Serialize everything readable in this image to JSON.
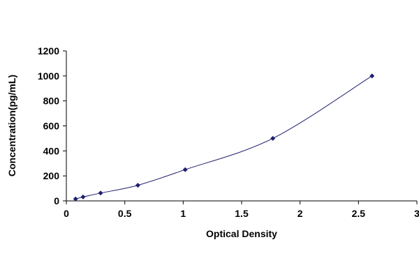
{
  "chart_data": {
    "type": "scatter",
    "title": "",
    "xlabel": "Optical Density",
    "ylabel": "Concentration(pg/mL)",
    "xlim": [
      0,
      3
    ],
    "ylim": [
      0,
      1200
    ],
    "x_ticks": [
      0,
      0.5,
      1,
      1.5,
      2,
      2.5,
      3
    ],
    "y_ticks": [
      0,
      200,
      400,
      600,
      800,
      1000,
      1200
    ],
    "x_tick_labels": [
      "0",
      "0.5",
      "1",
      "1.5",
      "2",
      "2.5",
      "3"
    ],
    "y_tick_labels": [
      "0",
      "200",
      "400",
      "600",
      "800",
      "1000",
      "1200"
    ],
    "grid": false,
    "legend": "none",
    "series": [
      {
        "x": [
          0.079,
          0.143,
          0.293,
          0.612,
          1.017,
          1.767,
          2.616
        ],
        "y": [
          15.6,
          31.25,
          62.5,
          125,
          250,
          500,
          1000
        ],
        "marker": "diamond",
        "line": "smooth",
        "color": "#1f1f6e"
      }
    ]
  }
}
